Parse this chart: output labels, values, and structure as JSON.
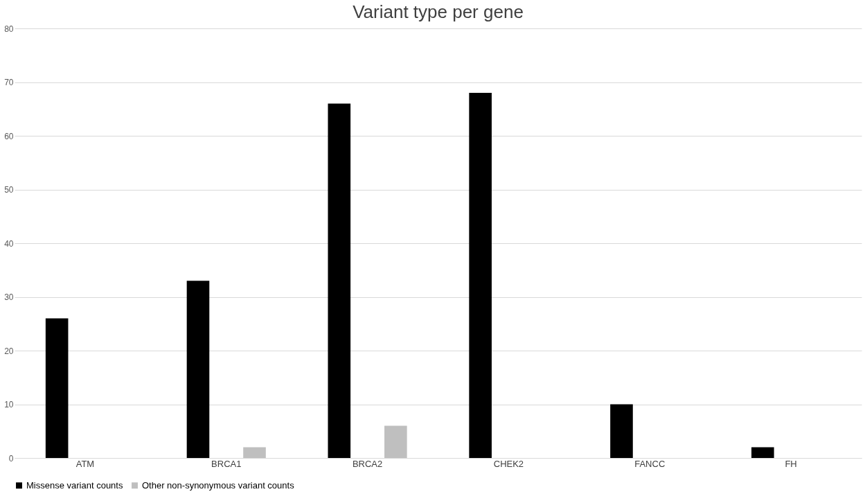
{
  "chart_data": {
    "type": "bar",
    "title": "Variant type per gene",
    "categories": [
      "ATM",
      "BRCA1",
      "BRCA2",
      "CHEK2",
      "FANCC",
      "FH"
    ],
    "series": [
      {
        "name": "Missense variant counts",
        "color": "#000000",
        "values": [
          26,
          33,
          66,
          68,
          10,
          2
        ]
      },
      {
        "name": "Other non-synonymous variant counts",
        "color": "#bfbfbf",
        "values": [
          0,
          2,
          6,
          0,
          0,
          0
        ]
      }
    ],
    "ylim": [
      0,
      80
    ],
    "yticks": [
      0,
      10,
      20,
      30,
      40,
      50,
      60,
      70,
      80
    ],
    "grid": "y",
    "legend": "bottom"
  }
}
